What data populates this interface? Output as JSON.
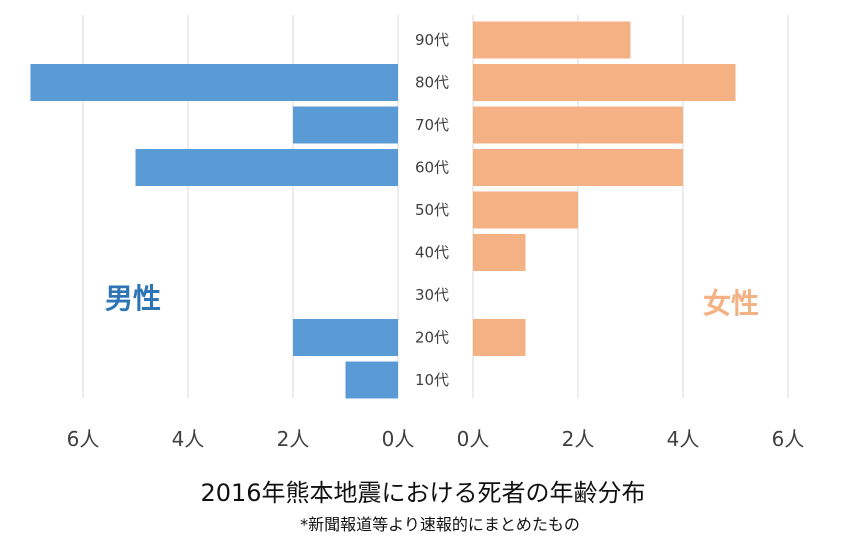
{
  "chart_data": {
    "type": "bar",
    "orientation": "horizontal",
    "title": "2016年熊本地震における死者の年齢分布",
    "subtitle": "*新聞報道等より速報的にまとめたもの",
    "categories": [
      "90代",
      "80代",
      "70代",
      "60代",
      "50代",
      "40代",
      "30代",
      "20代",
      "10代"
    ],
    "series": [
      {
        "name": "男性",
        "side": "left",
        "color": "#5b9bd5",
        "label_color": "#2e75b6",
        "values": [
          0,
          7,
          2,
          5,
          0,
          0,
          0,
          2,
          1
        ]
      },
      {
        "name": "女性",
        "side": "right",
        "color": "#f4b183",
        "label_color": "#f4b183",
        "values": [
          3,
          5,
          4,
          4,
          2,
          1,
          0,
          1,
          0
        ]
      }
    ],
    "left_ticks": [
      "6人",
      "4人",
      "2人",
      "0人"
    ],
    "left_tick_values": [
      6,
      4,
      2,
      0
    ],
    "right_ticks": [
      "0人",
      "2人",
      "4人",
      "6人"
    ],
    "right_tick_values": [
      0,
      2,
      4,
      6
    ],
    "xlim": [
      0,
      7
    ],
    "grid": true,
    "gridline_color": "#d9d9d9"
  }
}
